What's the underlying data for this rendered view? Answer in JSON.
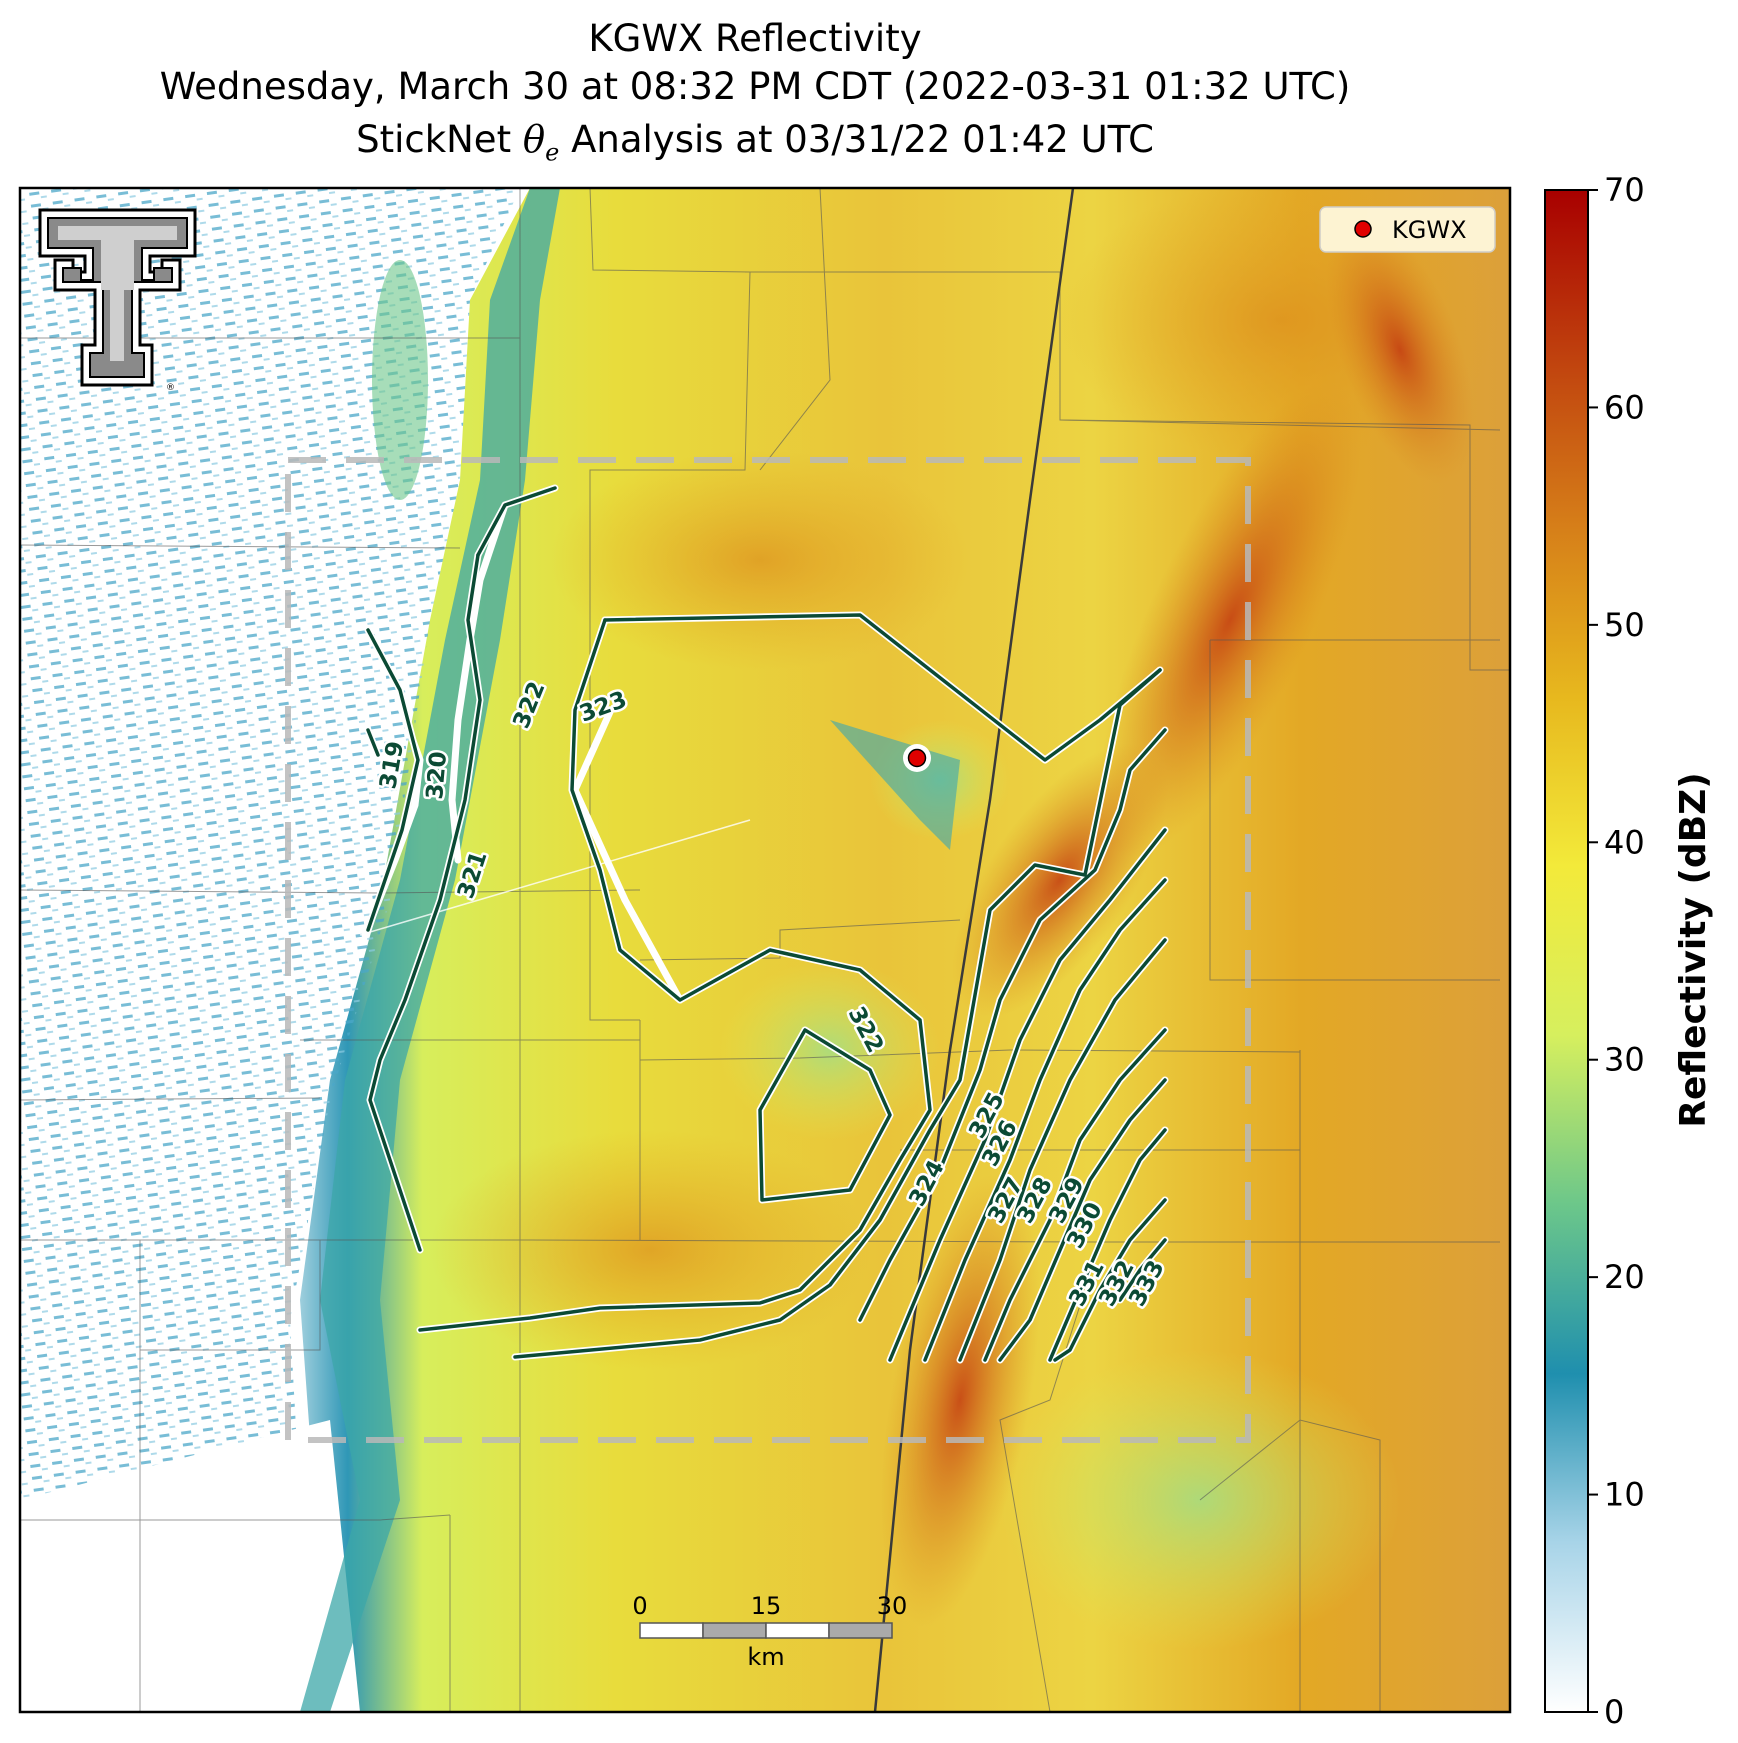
{
  "title": {
    "line1": "KGWX Reflectivity",
    "line2": "Wednesday, March 30 at 08:32 PM CDT (2022-03-31 01:32 UTC)",
    "line3_prefix": "StickNet",
    "line3_theta": "θ",
    "line3_sub": "e",
    "line3_suffix": "Analysis at 03/31/22 01:42 UTC"
  },
  "legend": {
    "marker_label": "KGWX",
    "marker_color": "#e00000"
  },
  "colorbar": {
    "label": "Reflectivity (dBZ)",
    "min": 0,
    "max": 70,
    "ticks": [
      "0",
      "10",
      "20",
      "30",
      "40",
      "50",
      "60",
      "70"
    ],
    "stops": [
      "#ffffff",
      "#a8d4e8",
      "#1f8fae",
      "#6cc78a",
      "#d6ef5e",
      "#f3ea3a",
      "#e7b81e",
      "#d67f19",
      "#c0420e",
      "#a80000"
    ]
  },
  "contour_labels": [
    "319",
    "320",
    "321",
    "322",
    "323",
    "322",
    "324",
    "325",
    "326",
    "327",
    "328",
    "329",
    "330",
    "331",
    "332",
    "333"
  ],
  "contour_color": "#0b4a34",
  "scale_bar": {
    "ticks": [
      "0",
      "15",
      "30"
    ],
    "unit": "km"
  },
  "logo": {
    "name": "Texas Tech double T"
  }
}
